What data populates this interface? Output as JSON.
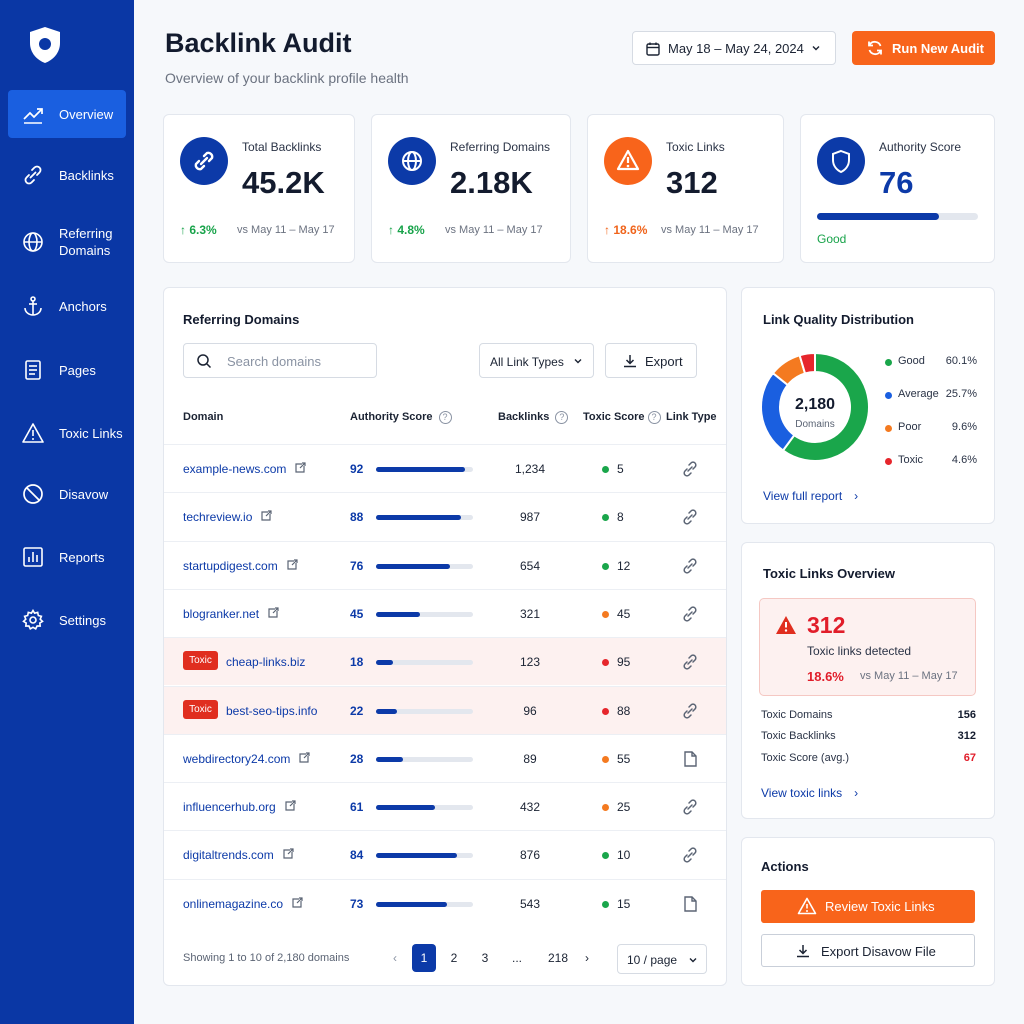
{
  "sidebar": {
    "items": [
      {
        "label": "Overview",
        "icon": "trending-up-icon"
      },
      {
        "label": "Backlinks",
        "icon": "link-icon"
      },
      {
        "label": "Referring\nDomains",
        "icon": "globe-icon"
      },
      {
        "label": "Anchors",
        "icon": "anchor-icon"
      },
      {
        "label": "Pages",
        "icon": "document-icon"
      },
      {
        "label": "Toxic Links",
        "icon": "warning-icon"
      },
      {
        "label": "Disavow",
        "icon": "ban-icon"
      },
      {
        "label": "Reports",
        "icon": "bar-chart-icon"
      },
      {
        "label": "Settings",
        "icon": "gear-icon"
      }
    ]
  },
  "header": {
    "title": "Backlink Audit",
    "subtitle": "Overview of your backlink profile health",
    "date_range": "May 18 – May 24, 2024",
    "run_button": "Run New Audit"
  },
  "stats": [
    {
      "label": "Total Backlinks",
      "value": "45.2K",
      "change": "6.3%",
      "vs": "vs May 11 – May 17"
    },
    {
      "label": "Referring Domains",
      "value": "2.18K",
      "change": "4.8%",
      "vs": "vs May 11 – May 17"
    },
    {
      "label": "Toxic Links",
      "value": "312",
      "change": "18.6%",
      "vs": "vs May 11 – May 17"
    },
    {
      "label": "Authority Score",
      "value": "76",
      "status": "Good",
      "score_fraction": 0.76
    }
  ],
  "domains_table": {
    "title": "Referring Domains",
    "search_placeholder": "Search domains",
    "filter": "All Link Types",
    "export": "Export",
    "columns": {
      "domain": "Domain",
      "authority": "Authority Score",
      "backlinks": "Backlinks",
      "toxic": "Toxic Score",
      "link_type": "Link Type"
    },
    "toxic_badge": "Toxic",
    "rows": [
      {
        "domain": "example-news.com",
        "authority": "92",
        "backlinks": "1,234",
        "toxic": "5",
        "level": "good",
        "toxic_flag": false,
        "type": "link"
      },
      {
        "domain": "techreview.io",
        "authority": "88",
        "backlinks": "987",
        "toxic": "8",
        "level": "good",
        "toxic_flag": false,
        "type": "link"
      },
      {
        "domain": "startupdigest.com",
        "authority": "76",
        "backlinks": "654",
        "toxic": "12",
        "level": "good",
        "toxic_flag": false,
        "type": "link"
      },
      {
        "domain": "blogranker.net",
        "authority": "45",
        "backlinks": "321",
        "toxic": "45",
        "level": "poor",
        "toxic_flag": false,
        "type": "link"
      },
      {
        "domain": "cheap-links.biz",
        "authority": "18",
        "backlinks": "123",
        "toxic": "95",
        "level": "toxic",
        "toxic_flag": true,
        "type": "link"
      },
      {
        "domain": "best-seo-tips.info",
        "authority": "22",
        "backlinks": "96",
        "toxic": "88",
        "level": "toxic",
        "toxic_flag": true,
        "type": "link"
      },
      {
        "domain": "webdirectory24.com",
        "authority": "28",
        "backlinks": "89",
        "toxic": "55",
        "level": "poor",
        "toxic_flag": false,
        "type": "page"
      },
      {
        "domain": "influencerhub.org",
        "authority": "61",
        "backlinks": "432",
        "toxic": "25",
        "level": "poor",
        "toxic_flag": false,
        "type": "link"
      },
      {
        "domain": "digitaltrends.com",
        "authority": "84",
        "backlinks": "876",
        "toxic": "10",
        "level": "good",
        "toxic_flag": false,
        "type": "link"
      },
      {
        "domain": "onlinemagazine.co",
        "authority": "73",
        "backlinks": "543",
        "toxic": "15",
        "level": "good",
        "toxic_flag": false,
        "type": "page"
      }
    ],
    "pagination": {
      "info": "Showing 1 to 10 of 2,180 domains",
      "pages": [
        "1",
        "2",
        "3",
        "...",
        "218"
      ],
      "per_page": "10 / page"
    }
  },
  "quality": {
    "title": "Link Quality Distribution",
    "center_value": "2,180",
    "center_label": "Domains",
    "legend": [
      {
        "name": "Good",
        "pct": "60.1%",
        "value": 60.1,
        "color": "#1aa64b"
      },
      {
        "name": "Average",
        "pct": "25.7%",
        "value": 25.7,
        "color": "#1a5fe0"
      },
      {
        "name": "Poor",
        "pct": "9.6%",
        "value": 9.6,
        "color": "#f47a20"
      },
      {
        "name": "Toxic",
        "pct": "4.6%",
        "value": 4.6,
        "color": "#e6262c"
      }
    ],
    "link": "View full report"
  },
  "toxic_overview": {
    "title": "Toxic Links Overview",
    "count": "312",
    "detected": "Toxic links detected",
    "change": "18.6%",
    "vs": "vs May 11 – May 17",
    "rows": [
      {
        "label": "Toxic Domains",
        "value": "156"
      },
      {
        "label": "Toxic Backlinks",
        "value": "312"
      },
      {
        "label": "Toxic Score (avg.)",
        "value": "67"
      }
    ],
    "link": "View toxic links"
  },
  "actions": {
    "title": "Actions",
    "review": "Review Toxic Links",
    "export_disavow": "Export Disavow File"
  },
  "colors": {
    "brand": "#0a37a5",
    "accent": "#f8641b",
    "good": "#1aa64b",
    "poor": "#f47a20",
    "toxic": "#e6262c"
  }
}
